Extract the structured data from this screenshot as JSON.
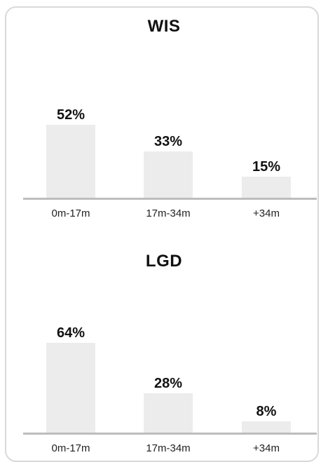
{
  "chart_data": [
    {
      "type": "bar",
      "title": "WIS",
      "categories": [
        "0m-17m",
        "17m-34m",
        "+34m"
      ],
      "values": [
        52,
        33,
        15
      ],
      "value_labels": [
        "52%",
        "33%",
        "15%"
      ],
      "unit": "%",
      "ylim": [
        0,
        100
      ],
      "grid": false,
      "bar_color": "#ececec",
      "baseline_color": "#bdbdbd"
    },
    {
      "type": "bar",
      "title": "LGD",
      "categories": [
        "0m-17m",
        "17m-34m",
        "+34m"
      ],
      "values": [
        64,
        28,
        8
      ],
      "value_labels": [
        "64%",
        "28%",
        "8%"
      ],
      "unit": "%",
      "ylim": [
        0,
        100
      ],
      "grid": false,
      "bar_color": "#ececec",
      "baseline_color": "#bdbdbd"
    }
  ]
}
